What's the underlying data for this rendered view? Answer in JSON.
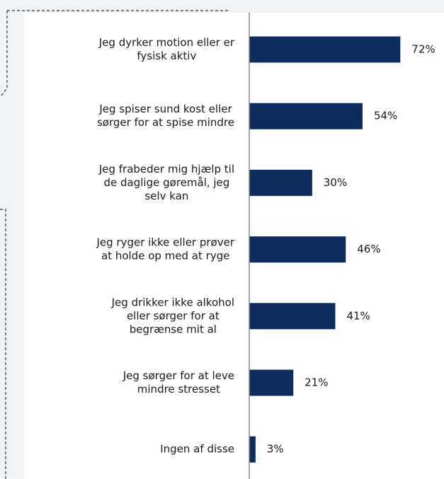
{
  "chart_data": {
    "type": "bar",
    "orientation": "horizontal",
    "categories": [
      [
        "Jeg dyrker motion eller er",
        "fysisk aktiv"
      ],
      [
        "Jeg spiser sund kost eller",
        "sørger for at spise mindre"
      ],
      [
        "Jeg frabeder mig hjælp til",
        "de daglige gøremål, jeg",
        "selv kan"
      ],
      [
        "Jeg ryger ikke eller prøver",
        "at holde op med at ryge"
      ],
      [
        "Jeg drikker ikke alkohol",
        "eller sørger for at",
        "begrænse mit al"
      ],
      [
        "Jeg sørger for at leve",
        "mindre stresset"
      ],
      [
        "Ingen af disse"
      ]
    ],
    "values": [
      72,
      54,
      30,
      46,
      41,
      21,
      3
    ],
    "value_labels": [
      "72%",
      "54%",
      "30%",
      "46%",
      "41%",
      "21%",
      "3%"
    ],
    "color": "#0d2d5e",
    "xlim": [
      0,
      80
    ]
  }
}
